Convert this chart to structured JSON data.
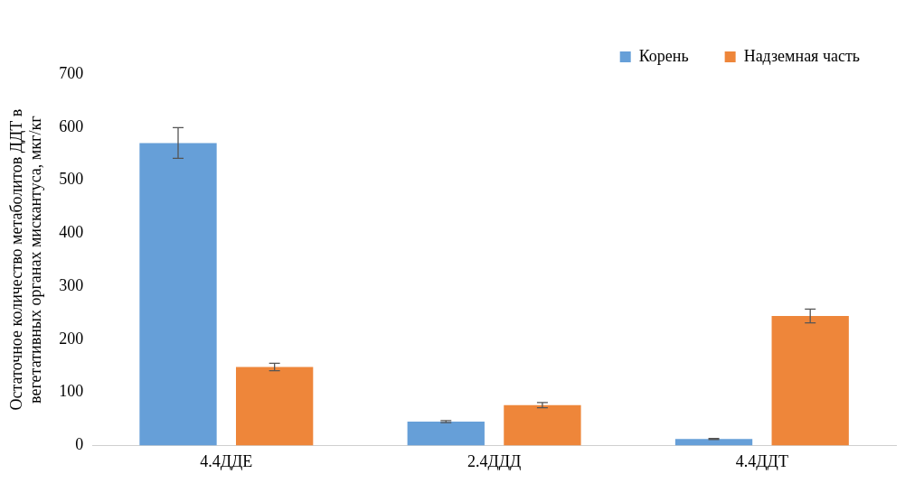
{
  "chart_data": {
    "type": "bar",
    "ylabel": "Остаточное количество метаболитов ДДТ в вегетативных органах мискантуса, мкг/кг",
    "categories": [
      "4.4ДДЕ",
      "2.4ДДД",
      "4.4ДДТ"
    ],
    "series": [
      {
        "name": "Корень",
        "color": "#669fd8",
        "values": [
          570,
          45,
          12
        ],
        "errors": [
          29,
          2,
          1
        ]
      },
      {
        "name": "Надземная часть",
        "color": "#ee863a",
        "values": [
          148,
          76,
          244
        ],
        "errors": [
          7,
          5,
          13
        ]
      }
    ],
    "ylim": [
      0,
      700
    ],
    "yticks": [
      0,
      100,
      200,
      300,
      400,
      500,
      600,
      700
    ],
    "grid": false,
    "legend": "top right"
  }
}
